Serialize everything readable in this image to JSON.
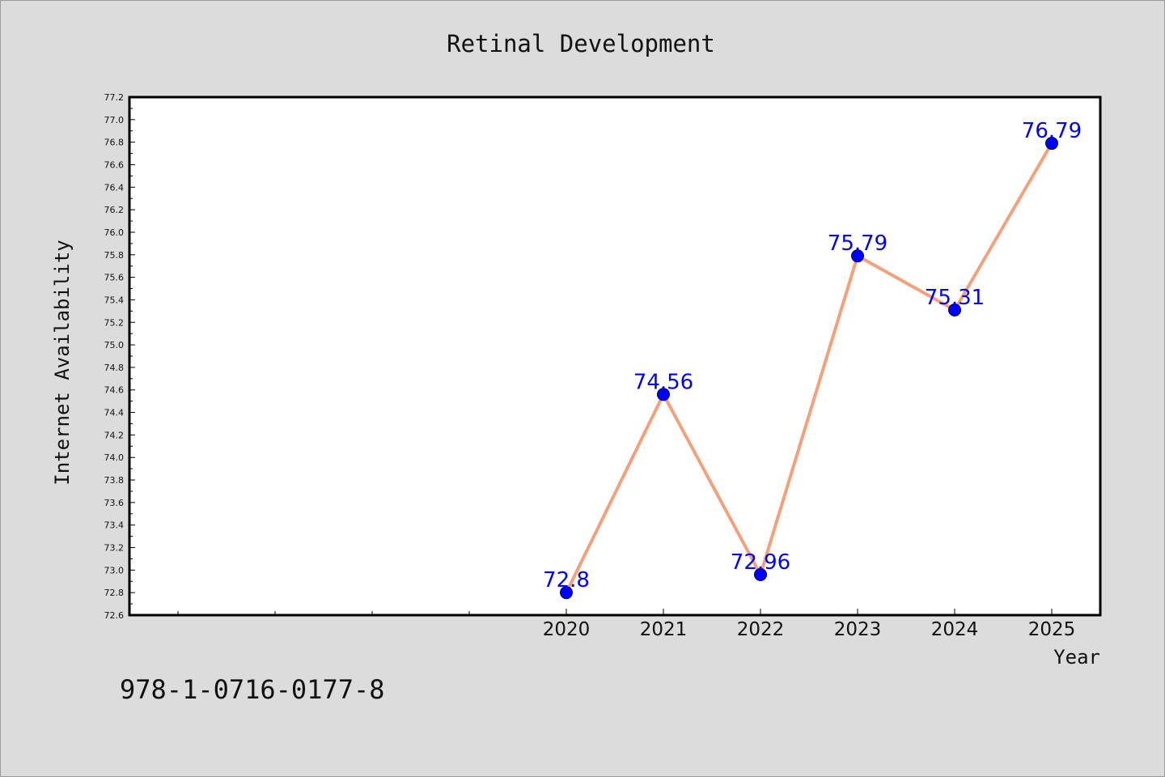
{
  "chart_data": {
    "type": "line",
    "title": "Retinal Development",
    "xlabel": "Year",
    "ylabel": "Internet Availability",
    "categories": [
      "2020",
      "2021",
      "2022",
      "2023",
      "2024",
      "2025"
    ],
    "series": [
      {
        "values": [
          72.8,
          74.56,
          72.96,
          75.79,
          75.31,
          76.79
        ]
      }
    ],
    "data_labels": [
      "72.8",
      "74.56",
      "72.96",
      "75.79",
      "75.31",
      "76.79"
    ],
    "ylim": [
      72.6,
      77.2
    ],
    "yticks": [
      "72.6",
      "72.8",
      "73.0",
      "73.2",
      "73.4",
      "73.6",
      "73.8",
      "74.0",
      "74.2",
      "74.4",
      "74.6",
      "74.8",
      "75.0",
      "75.2",
      "75.4",
      "75.6",
      "75.8",
      "76.0",
      "76.2",
      "76.4",
      "76.6",
      "76.8",
      "77.0",
      "77.2"
    ],
    "grid": false,
    "legend": "none",
    "colors": {
      "line": "#f4a07c",
      "marker": "#0000ff",
      "label": "#0000ff",
      "background": "#dcdcdc",
      "plot_bg": "#ffffff"
    }
  },
  "footer": {
    "isbn": "978-1-0716-0177-8"
  }
}
